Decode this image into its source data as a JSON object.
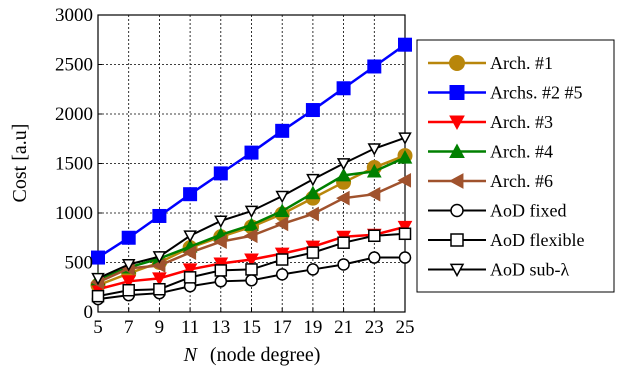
{
  "chart_data": {
    "type": "line",
    "xlabel_var": "N",
    "xlabel_rest": "(node degree)",
    "ylabel": "Cost [a.u]",
    "xlim": [
      5,
      25
    ],
    "ylim": [
      0,
      3000
    ],
    "x": [
      5,
      7,
      9,
      11,
      13,
      15,
      17,
      19,
      21,
      23,
      25
    ],
    "xticks": [
      "5",
      "7",
      "9",
      "11",
      "13",
      "15",
      "17",
      "19",
      "21",
      "23",
      "25"
    ],
    "yticks": [
      "0",
      "500",
      "1000",
      "1500",
      "2000",
      "2500",
      "3000"
    ],
    "ytick_values": [
      0,
      500,
      1000,
      1500,
      2000,
      2500,
      3000
    ],
    "grid": true,
    "legend_position": "right",
    "series": [
      {
        "name": "Arch. #1",
        "color": "#b8860b",
        "marker": "circle-filled",
        "values": [
          270,
          390,
          500,
          650,
          760,
          860,
          990,
          1150,
          1310,
          1460,
          1580
        ]
      },
      {
        "name": "Archs. #2 #5",
        "color": "#0000ff",
        "marker": "square-filled",
        "values": [
          550,
          750,
          970,
          1190,
          1400,
          1610,
          1830,
          2040,
          2260,
          2480,
          2700
        ]
      },
      {
        "name": "Arch. #3",
        "color": "#ff0000",
        "marker": "triangle-down-filled",
        "values": [
          230,
          310,
          340,
          430,
          490,
          530,
          590,
          660,
          760,
          780,
          860
        ]
      },
      {
        "name": "Arch. #4",
        "color": "#008000",
        "marker": "triangle-up-filled",
        "values": [
          330,
          450,
          540,
          660,
          780,
          880,
          1020,
          1200,
          1380,
          1420,
          1560
        ]
      },
      {
        "name": "Arch. #6",
        "color": "#a0522d",
        "marker": "triangle-left-filled",
        "values": [
          300,
          440,
          470,
          600,
          710,
          770,
          890,
          990,
          1150,
          1190,
          1330
        ]
      },
      {
        "name": "AoD fixed",
        "color": "#000000",
        "marker": "circle-open",
        "values": [
          130,
          170,
          190,
          260,
          310,
          320,
          380,
          430,
          480,
          550,
          550
        ]
      },
      {
        "name": "AoD flexible",
        "color": "#000000",
        "marker": "square-open",
        "values": [
          160,
          220,
          230,
          350,
          420,
          430,
          530,
          600,
          700,
          770,
          790
        ]
      },
      {
        "name": "AoD sub-λ",
        "color": "#000000",
        "marker": "triangle-down-open",
        "values": [
          340,
          480,
          560,
          770,
          920,
          1020,
          1170,
          1340,
          1500,
          1650,
          1760
        ]
      }
    ]
  }
}
